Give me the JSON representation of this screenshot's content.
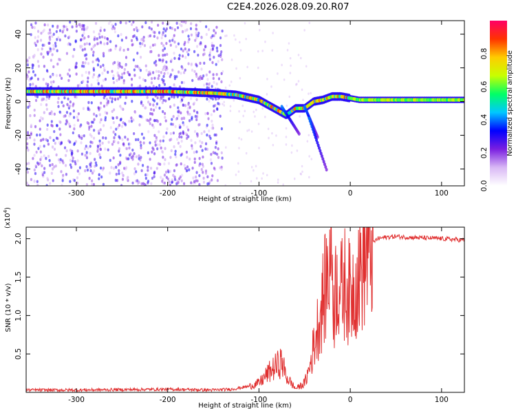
{
  "title": "C2E4.2026.028.09.20.R07",
  "chart_data": [
    {
      "type": "heatmap",
      "xlabel": "Height of straight line (km)",
      "ylabel": "Frequency (Hz)",
      "xlim": [
        -355,
        125
      ],
      "ylim": [
        -50,
        48
      ],
      "x_ticks": [
        -300,
        -200,
        -100,
        0,
        100
      ],
      "y_ticks": [
        40,
        20,
        0,
        -20,
        -40
      ],
      "colorbar": {
        "label": "Normalized spectral amplitude",
        "range": [
          0,
          1
        ],
        "ticks": [
          "0.0",
          "0.2",
          "0.4",
          "0.6",
          "0.8"
        ],
        "colors": [
          "#ffffff",
          "#d9b8f5",
          "#7a1fe0",
          "#0000ff",
          "#00c8ff",
          "#00ff66",
          "#c8ff00",
          "#ffcc00",
          "#ff3300",
          "#ff0066"
        ]
      },
      "ridge": {
        "description_free": true,
        "x": [
          -355,
          -300,
          -250,
          -200,
          -150,
          -125,
          -100,
          -90,
          -80,
          -70,
          -60,
          -50,
          -40,
          -30,
          -20,
          -10,
          0,
          10,
          50,
          125
        ],
        "frequency": [
          6,
          6,
          6,
          6,
          5,
          4,
          1,
          -2,
          -5,
          -8,
          -4,
          -4,
          0,
          1,
          3,
          3,
          2,
          1,
          1,
          1
        ]
      }
    },
    {
      "type": "line",
      "xlabel": "Height of straight line (km)",
      "ylabel": "SNR (10 * v/v)",
      "y_scale_label": "(x10",
      "y_scale_exp": "4",
      "y_scale_close": ")",
      "xlim": [
        -355,
        125
      ],
      "ylim": [
        0,
        2.15
      ],
      "x_ticks": [
        -300,
        -200,
        -100,
        0,
        100
      ],
      "y_ticks": [
        2.0,
        1.5,
        1.0,
        0.5
      ],
      "y_tick_labels": [
        "2.0",
        "1.5",
        "1.0",
        "0.5"
      ],
      "series": [
        {
          "name": "SNR",
          "color": "#e03030",
          "x": [
            -355,
            -300,
            -200,
            -150,
            -130,
            -110,
            -100,
            -95,
            -90,
            -85,
            -80,
            -75,
            -70,
            -60,
            -55,
            -50,
            -45,
            -40,
            -35,
            -30,
            -25,
            -22,
            -20,
            -18,
            -15,
            -10,
            -5,
            0,
            5,
            10,
            15,
            20,
            25,
            30,
            40,
            50,
            60,
            80,
            100,
            125
          ],
          "y": [
            0.03,
            0.03,
            0.04,
            0.03,
            0.04,
            0.08,
            0.12,
            0.18,
            0.25,
            0.3,
            0.35,
            0.4,
            0.2,
            0.05,
            0.08,
            0.12,
            0.3,
            0.6,
            0.9,
            1.2,
            1.5,
            1.8,
            1.9,
            1.1,
            1.5,
            1.3,
            1.45,
            1.25,
            1.45,
            1.55,
            1.7,
            1.85,
            1.95,
            2.0,
            2.02,
            2.03,
            2.02,
            2.01,
            2.0,
            1.98
          ]
        }
      ]
    }
  ]
}
